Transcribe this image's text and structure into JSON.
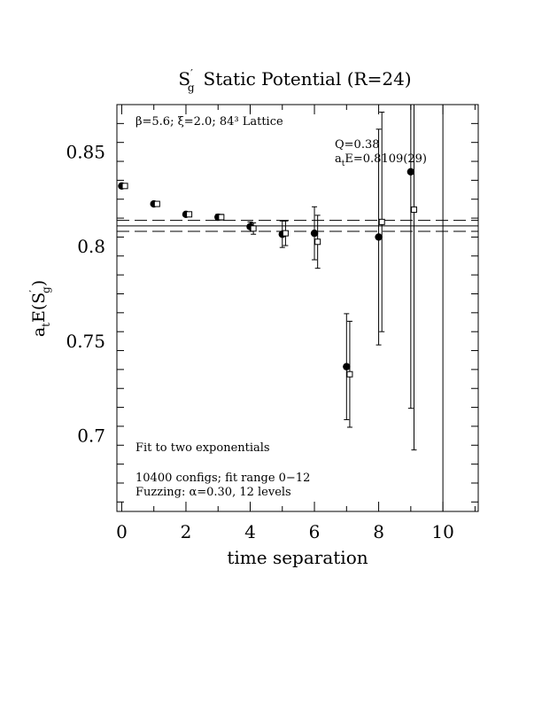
{
  "chart_data": {
    "type": "scatter",
    "title": {
      "main": "S",
      "sup": "′",
      "sub": "g",
      "rest": "Static Potential (R=24)"
    },
    "xlabel": "time separation",
    "ylabel": {
      "a": "a",
      "a_sub": "t",
      "e": "E(S",
      "e_sup": "′",
      "e_sub": "g",
      "close": ")"
    },
    "xlim": [
      -0.15,
      11.1
    ],
    "ylim": [
      0.66,
      0.875
    ],
    "x_ticks": [
      0,
      2,
      4,
      6,
      8,
      10
    ],
    "x_tick_labels": [
      "0",
      "2",
      "4",
      "6",
      "8",
      "10"
    ],
    "y_ticks": [
      0.7,
      0.75,
      0.8,
      0.85
    ],
    "y_tick_labels": [
      "0.7",
      "0.75",
      "0.8",
      "0.85"
    ],
    "grid": false,
    "fit": {
      "value": 0.8109,
      "lower": 0.808,
      "upper": 0.8138
    },
    "series": [
      {
        "name": "",
        "marker": "filled-circle",
        "points": [
          {
            "x": 0,
            "y": 0.832,
            "err": 0.001
          },
          {
            "x": 1,
            "y": 0.8225,
            "err": 0.001
          },
          {
            "x": 2,
            "y": 0.817,
            "err": 0.001
          },
          {
            "x": 3,
            "y": 0.8155,
            "err": 0.0015
          },
          {
            "x": 4,
            "y": 0.8105,
            "err": 0.0025
          },
          {
            "x": 5,
            "y": 0.8065,
            "err": 0.007
          },
          {
            "x": 6,
            "y": 0.807,
            "err": 0.014
          },
          {
            "x": 7,
            "y": 0.7365,
            "err": 0.028
          },
          {
            "x": 8,
            "y": 0.805,
            "err": 0.057
          },
          {
            "x": 9,
            "y": 0.8395,
            "err": 0.125
          }
        ]
      },
      {
        "name": "",
        "marker": "open-square",
        "points": [
          {
            "x": 0.1,
            "y": 0.832,
            "err": 0.001
          },
          {
            "x": 1.1,
            "y": 0.8225,
            "err": 0.001
          },
          {
            "x": 2.1,
            "y": 0.817,
            "err": 0.001
          },
          {
            "x": 3.1,
            "y": 0.8155,
            "err": 0.0015
          },
          {
            "x": 4.1,
            "y": 0.8095,
            "err": 0.003
          },
          {
            "x": 5.1,
            "y": 0.807,
            "err": 0.0065
          },
          {
            "x": 6.1,
            "y": 0.8025,
            "err": 0.014
          },
          {
            "x": 7.1,
            "y": 0.7325,
            "err": 0.028
          },
          {
            "x": 8.1,
            "y": 0.813,
            "err": 0.058
          },
          {
            "x": 9.1,
            "y": 0.8195,
            "err": 0.127
          },
          {
            "x": 10.0,
            "y": 0.876,
            "err": 0.22
          }
        ]
      }
    ],
    "annotations": {
      "lattice": "β=5.6; ξ=2.0; 84³ Lattice",
      "q": "Q=0.38",
      "energy_a": "a",
      "energy_sub": "t",
      "energy_rest": "E=0.8109(29)",
      "fit_type": "Fit to two exponentials",
      "configs": "10400 configs; fit range 0−12",
      "fuzzing": "Fuzzing: α=0.30, 12 levels"
    }
  }
}
